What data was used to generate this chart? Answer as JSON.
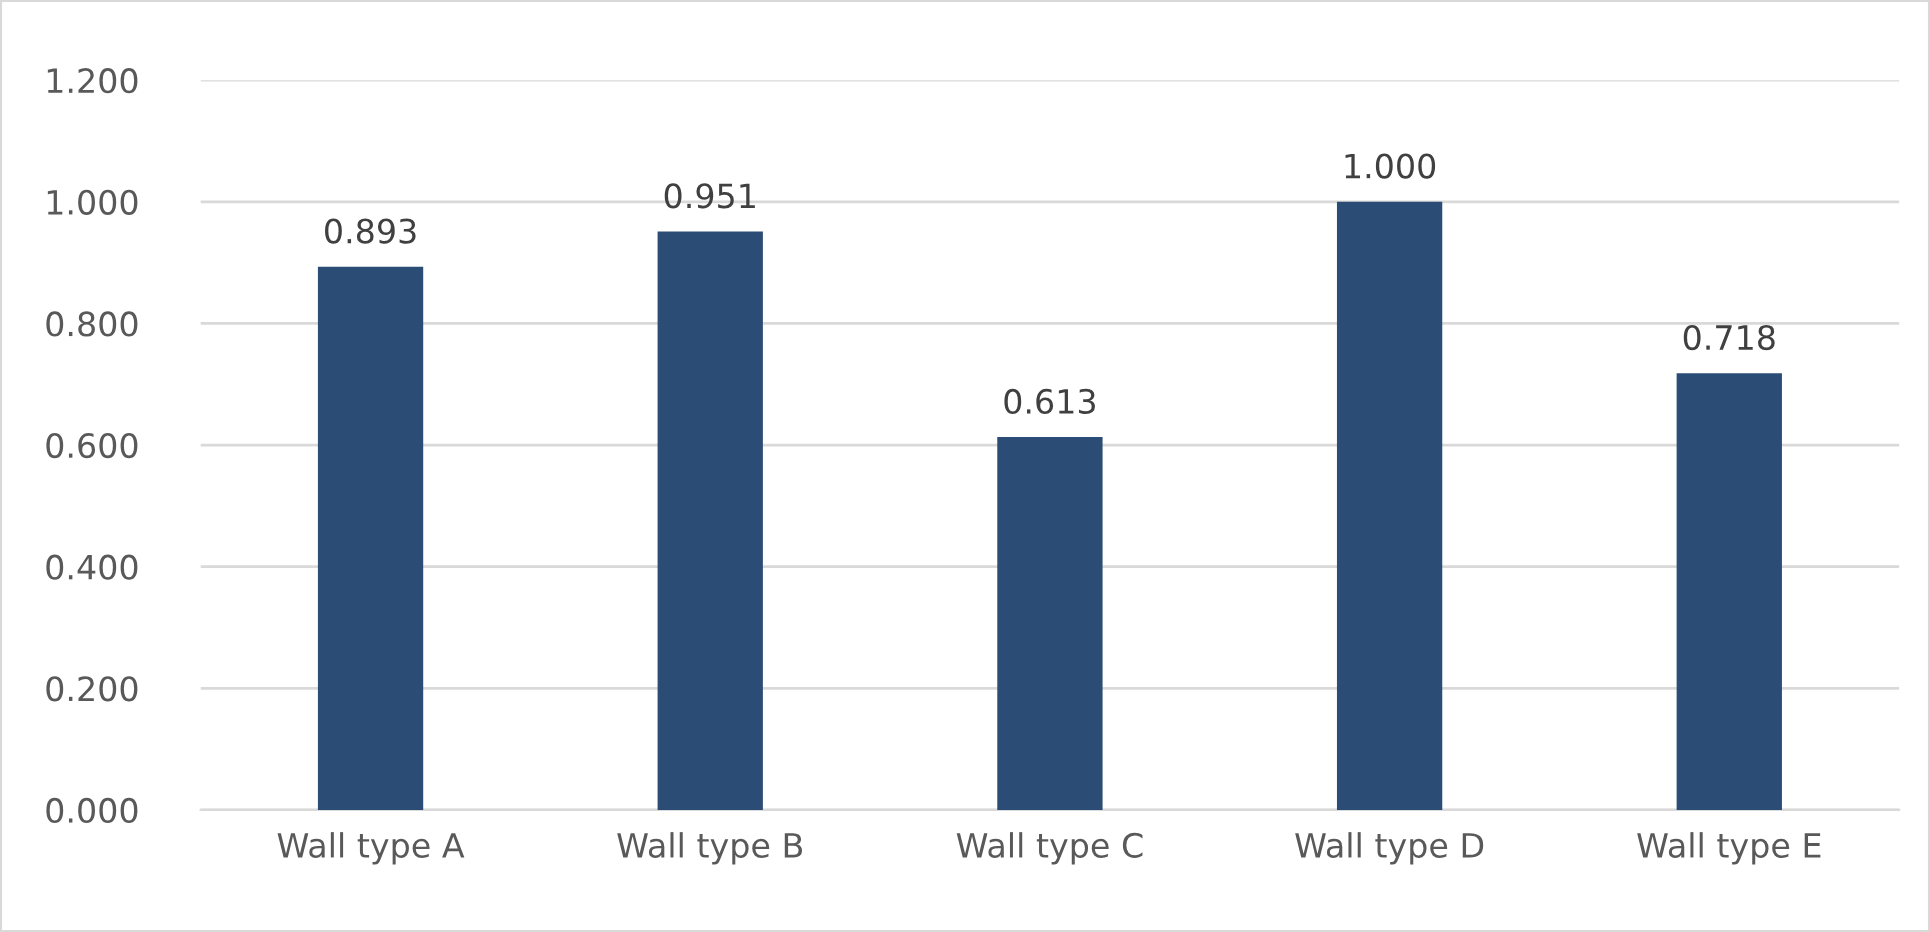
{
  "chart_data": {
    "type": "bar",
    "categories": [
      "Wall type A",
      "Wall type B",
      "Wall type C",
      "Wall type D",
      "Wall type E"
    ],
    "values": [
      0.893,
      0.951,
      0.613,
      1.0,
      0.718
    ],
    "value_labels": [
      "0.893",
      "0.951",
      "0.613",
      "1.000",
      "0.718"
    ],
    "color": "#2b4c75",
    "ylim": [
      0,
      1.2
    ],
    "yticks": [
      {
        "value": 0,
        "label": "0.000"
      },
      {
        "value": 0.2,
        "label": "0.200"
      },
      {
        "value": 0.4,
        "label": "0.400"
      },
      {
        "value": 0.6,
        "label": "0.600"
      },
      {
        "value": 0.8,
        "label": "0.800"
      },
      {
        "value": 1.0,
        "label": "1.000"
      },
      {
        "value": 1.2,
        "label": "1.200"
      }
    ],
    "grid": "y",
    "legend": false
  }
}
